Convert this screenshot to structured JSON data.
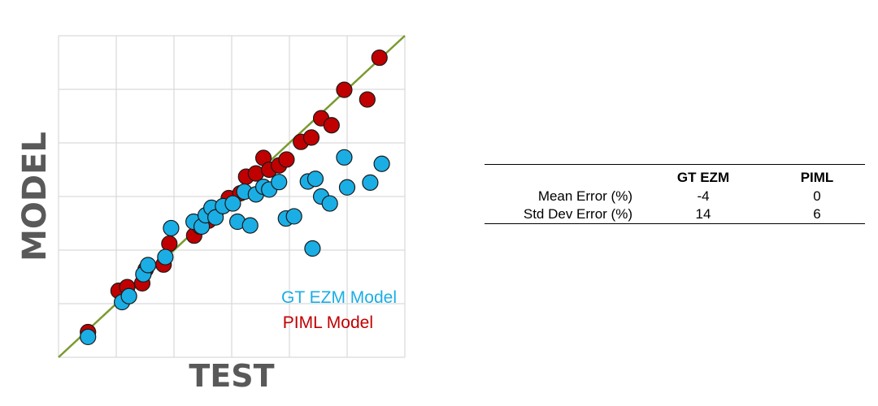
{
  "chart_data": {
    "type": "scatter",
    "xlabel": "TEST",
    "ylabel": "MODEL",
    "xlim": [
      0,
      6
    ],
    "ylim": [
      0,
      6
    ],
    "grid": true,
    "tick_labels_shown": false,
    "legend_position": "bottom-right, inside plot",
    "reference_line": "y = x",
    "colors": {
      "gt_ezm": "#1AAEE5",
      "piml": "#C00000",
      "reference_line": "#7A9A2E",
      "grid": "#D9D9D9"
    },
    "series": [
      {
        "name": "PIML Model",
        "points": [
          [
            0.51,
            0.47
          ],
          [
            1.04,
            1.24
          ],
          [
            1.19,
            1.31
          ],
          [
            1.45,
            1.38
          ],
          [
            1.51,
            1.64
          ],
          [
            1.82,
            1.73
          ],
          [
            1.92,
            2.12
          ],
          [
            2.35,
            2.27
          ],
          [
            2.45,
            2.44
          ],
          [
            2.6,
            2.55
          ],
          [
            2.75,
            2.76
          ],
          [
            2.95,
            2.97
          ],
          [
            3.15,
            3.06
          ],
          [
            3.25,
            3.37
          ],
          [
            3.42,
            3.43
          ],
          [
            3.55,
            3.72
          ],
          [
            3.65,
            3.5
          ],
          [
            3.82,
            3.58
          ],
          [
            3.95,
            3.69
          ],
          [
            4.2,
            4.02
          ],
          [
            4.38,
            4.1
          ],
          [
            4.55,
            4.46
          ],
          [
            4.73,
            4.33
          ],
          [
            4.95,
            4.99
          ],
          [
            5.35,
            4.81
          ],
          [
            5.56,
            5.59
          ]
        ]
      },
      {
        "name": "GT EZM Model",
        "points": [
          [
            0.51,
            0.38
          ],
          [
            1.1,
            1.03
          ],
          [
            1.22,
            1.14
          ],
          [
            1.47,
            1.55
          ],
          [
            1.55,
            1.72
          ],
          [
            1.85,
            1.87
          ],
          [
            1.95,
            2.41
          ],
          [
            2.34,
            2.53
          ],
          [
            2.48,
            2.44
          ],
          [
            2.55,
            2.65
          ],
          [
            2.65,
            2.79
          ],
          [
            2.72,
            2.61
          ],
          [
            2.85,
            2.82
          ],
          [
            3.02,
            2.87
          ],
          [
            3.1,
            2.53
          ],
          [
            3.22,
            3.09
          ],
          [
            3.32,
            2.46
          ],
          [
            3.42,
            3.04
          ],
          [
            3.55,
            3.18
          ],
          [
            3.65,
            3.13
          ],
          [
            3.82,
            3.27
          ],
          [
            3.94,
            2.59
          ],
          [
            4.08,
            2.63
          ],
          [
            4.32,
            3.28
          ],
          [
            4.45,
            3.33
          ],
          [
            4.55,
            3.0
          ],
          [
            4.7,
            2.87
          ],
          [
            4.4,
            2.03
          ],
          [
            5.0,
            3.17
          ],
          [
            5.4,
            3.26
          ],
          [
            5.6,
            3.61
          ],
          [
            4.95,
            3.73
          ]
        ]
      }
    ]
  },
  "table": {
    "headers": [
      "",
      "GT EZM",
      "PIML"
    ],
    "rows": [
      {
        "label": "Mean Error (%)",
        "values": [
          "-4",
          "0"
        ]
      },
      {
        "label": "Std Dev Error (%)",
        "values": [
          "14",
          "6"
        ]
      }
    ]
  }
}
